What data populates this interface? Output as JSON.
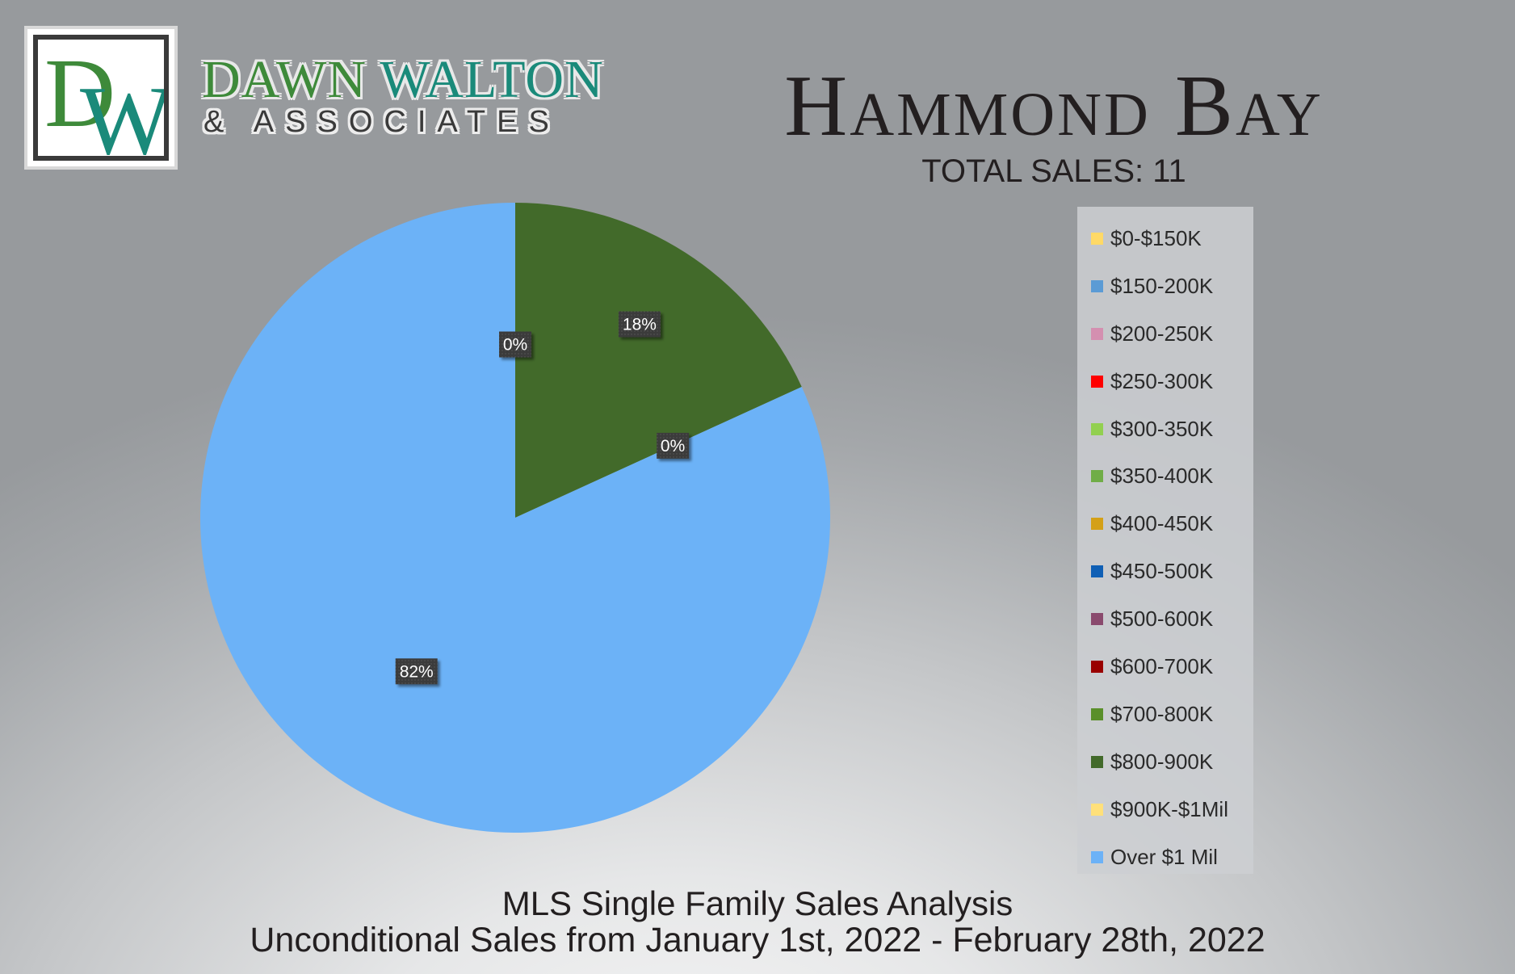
{
  "brand": {
    "logo_d": "D",
    "logo_w": "W",
    "name_dawn": "DAWN",
    "name_walton": "WALTON",
    "tagline": "& ASSOCIATES",
    "colors": {
      "green": "#3e8a3a",
      "teal": "#1a8a7a",
      "dark": "#3a3a3a"
    }
  },
  "header": {
    "title": "Hammond Bay",
    "subtitle": "TOTAL SALES: 11"
  },
  "footer": {
    "line1": "MLS Single Family Sales Analysis",
    "line2": "Unconditional Sales from January 1st, 2022 - February 28th, 2022"
  },
  "chart_data": {
    "type": "pie",
    "title": "",
    "legend_position": "right",
    "slices": [
      {
        "label": "$0-$150K",
        "value": 0,
        "color": "#ffd966"
      },
      {
        "label": "$150-200K",
        "value": 0,
        "color": "#5b9bd5"
      },
      {
        "label": "$200-250K",
        "value": 0,
        "color": "#d48fb0"
      },
      {
        "label": "$250-300K",
        "value": 0,
        "color": "#ff0000"
      },
      {
        "label": "$300-350K",
        "value": 0,
        "color": "#92d050"
      },
      {
        "label": "$350-400K",
        "value": 0,
        "color": "#70ad47"
      },
      {
        "label": "$400-450K",
        "value": 0,
        "color": "#d4a017"
      },
      {
        "label": "$450-500K",
        "value": 0,
        "color": "#0f5fb5"
      },
      {
        "label": "$500-600K",
        "value": 0,
        "color": "#8a4a6e"
      },
      {
        "label": "$600-700K",
        "value": 0,
        "color": "#990000"
      },
      {
        "label": "$700-800K",
        "value": 0,
        "color": "#5a8f2a"
      },
      {
        "label": "$800-900K",
        "value": 2,
        "color": "#426a2a"
      },
      {
        "label": "$900K-$1Mil",
        "value": 0,
        "color": "#ffe07a"
      },
      {
        "label": "Over $1 Mil",
        "value": 9,
        "color": "#6cb2f7"
      }
    ],
    "data_labels": [
      {
        "text": "0%",
        "slice": "$0-$150K"
      },
      {
        "text": "18%",
        "slice": "$800-900K"
      },
      {
        "text": "0%",
        "slice": "$900K-$1Mil"
      },
      {
        "text": "82%",
        "slice": "Over $1 Mil"
      }
    ]
  }
}
